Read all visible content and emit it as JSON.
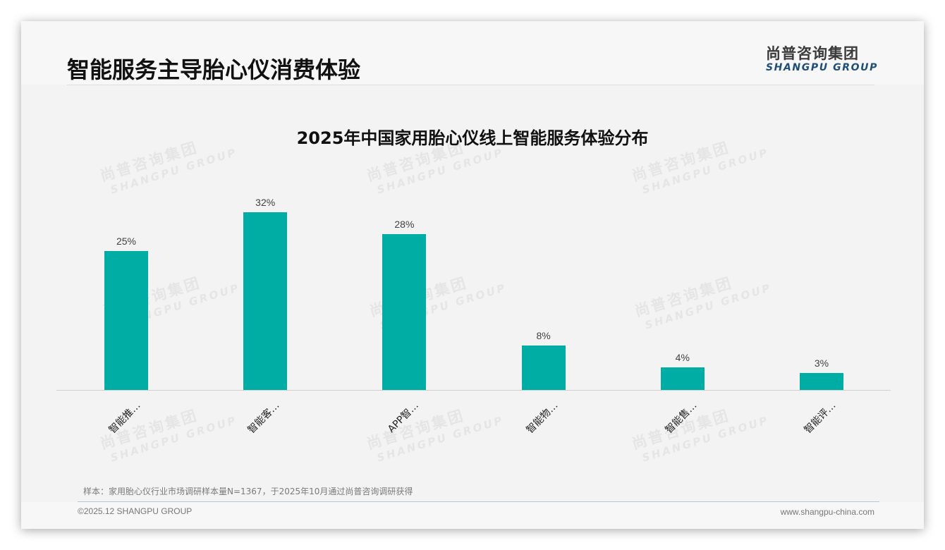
{
  "header": {
    "title": "智能服务主导胎心仪消费体验",
    "logo_cn": "尚普咨询集团",
    "logo_en": "SHANGPU GROUP"
  },
  "watermark": {
    "cn": "尚普咨询集团",
    "en": "SHANGPU GROUP"
  },
  "colors": {
    "bar": "#00ada4",
    "background": "#f3f3f3",
    "logo_en": "#1f4e79"
  },
  "chart_data": {
    "type": "bar",
    "title": "2025年中国家用胎心仪线上智能服务体验分布",
    "categories": [
      "智能推…",
      "智能客…",
      "APP智…",
      "智能物…",
      "智能售…",
      "智能评…"
    ],
    "values": [
      25,
      32,
      28,
      8,
      4,
      3
    ],
    "value_labels": [
      "25%",
      "32%",
      "28%",
      "8%",
      "4%",
      "3%"
    ],
    "unit": "%",
    "xlabel": "",
    "ylabel": "",
    "ylim": [
      0,
      35
    ],
    "grid": false,
    "legend": null
  },
  "footer": {
    "note": "样本：家用胎心仪行业市场调研样本量N=1367，于2025年10月通过尚普咨询调研获得",
    "copyright": "©2025.12 SHANGPU GROUP",
    "website": "www.shangpu-china.com"
  }
}
